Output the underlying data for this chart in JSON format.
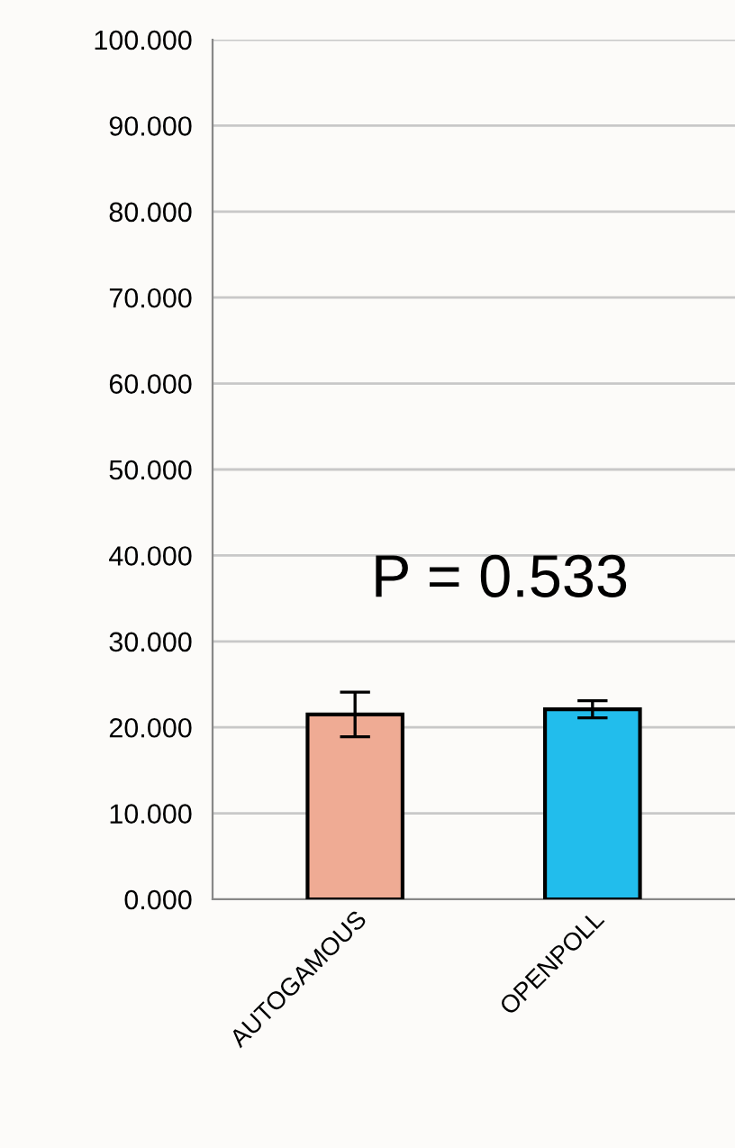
{
  "chart_data": {
    "type": "bar",
    "categories": [
      "AUTOGAMOUS",
      "OPENPOLL"
    ],
    "values": [
      21.5,
      22.1
    ],
    "colors": [
      "#efab94",
      "#22bdec"
    ],
    "errors": [
      2.6,
      1.0
    ],
    "ylim": [
      0,
      100
    ],
    "yticks": [
      {
        "value": 0,
        "label": "0.000"
      },
      {
        "value": 10,
        "label": "10.000"
      },
      {
        "value": 20,
        "label": "20.000"
      },
      {
        "value": 30,
        "label": "30.000"
      },
      {
        "value": 40,
        "label": "40.000"
      },
      {
        "value": 50,
        "label": "50.000"
      },
      {
        "value": 60,
        "label": "60.000"
      },
      {
        "value": 70,
        "label": "70.000"
      },
      {
        "value": 80,
        "label": "80.000"
      },
      {
        "value": 90,
        "label": "90.000"
      },
      {
        "value": 100,
        "label": "100.000"
      }
    ],
    "grid": "y",
    "annotations": [
      "P = 0.533"
    ]
  }
}
